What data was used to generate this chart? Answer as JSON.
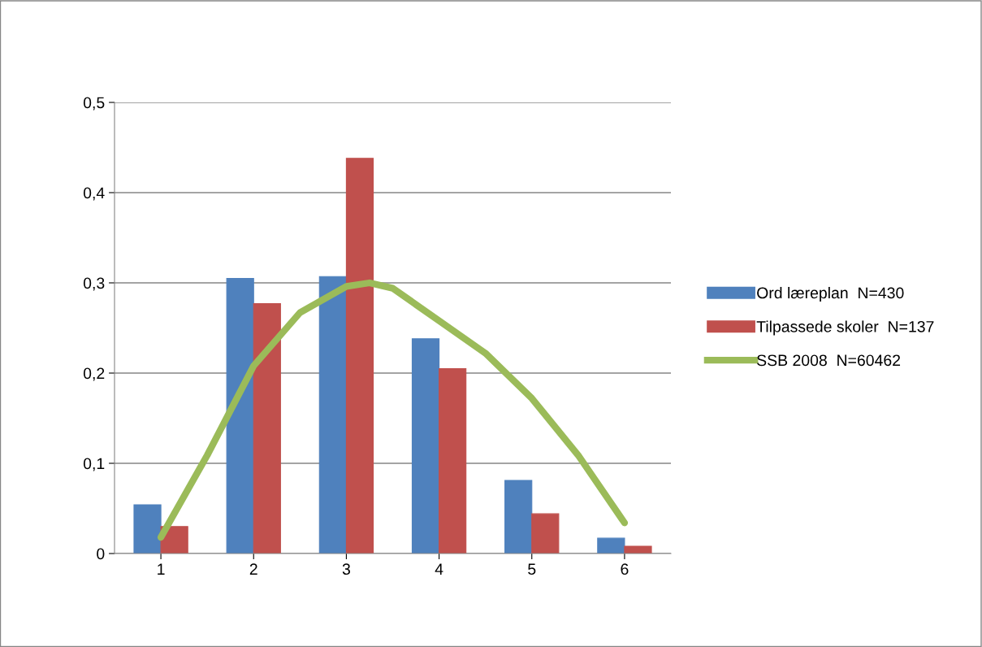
{
  "chart_data": {
    "type": "bar",
    "x": [
      1,
      2,
      3,
      4,
      5,
      6
    ],
    "xlim": [
      0.5,
      6.5
    ],
    "xticks": [
      1,
      2,
      3,
      4,
      5,
      6
    ],
    "series": [
      {
        "name": "Ord læreplan  N=430",
        "color": "#4f81bd",
        "values": [
          0.054,
          0.305,
          0.307,
          0.238,
          0.081,
          0.017
        ]
      },
      {
        "name": "Tilpassede skoler  N=137",
        "color": "#c0504d",
        "values": [
          0.03,
          0.277,
          0.438,
          0.205,
          0.044,
          0.008
        ]
      },
      {
        "name": "SSB 2008  N=60462",
        "type": "line",
        "color": "#9bbb59",
        "x": [
          1,
          1.5,
          2,
          2.5,
          3,
          3.25,
          3.5,
          4,
          4.5,
          5,
          5.5,
          6
        ],
        "values": [
          0.018,
          0.109,
          0.208,
          0.267,
          0.296,
          0.3,
          0.294,
          0.258,
          0.222,
          0.172,
          0.109,
          0.034
        ]
      }
    ],
    "ylim": [
      0,
      0.5
    ],
    "yticks": [
      0,
      {
        "value": 0.1,
        "label": "0,1"
      },
      {
        "value": 0.2,
        "label": "0,2"
      },
      {
        "value": 0.3,
        "label": "0,3"
      },
      {
        "value": 0.4,
        "label": "0,4"
      },
      {
        "value": 0.5,
        "label": "0,5"
      }
    ],
    "grid": "y",
    "legend": "right"
  }
}
